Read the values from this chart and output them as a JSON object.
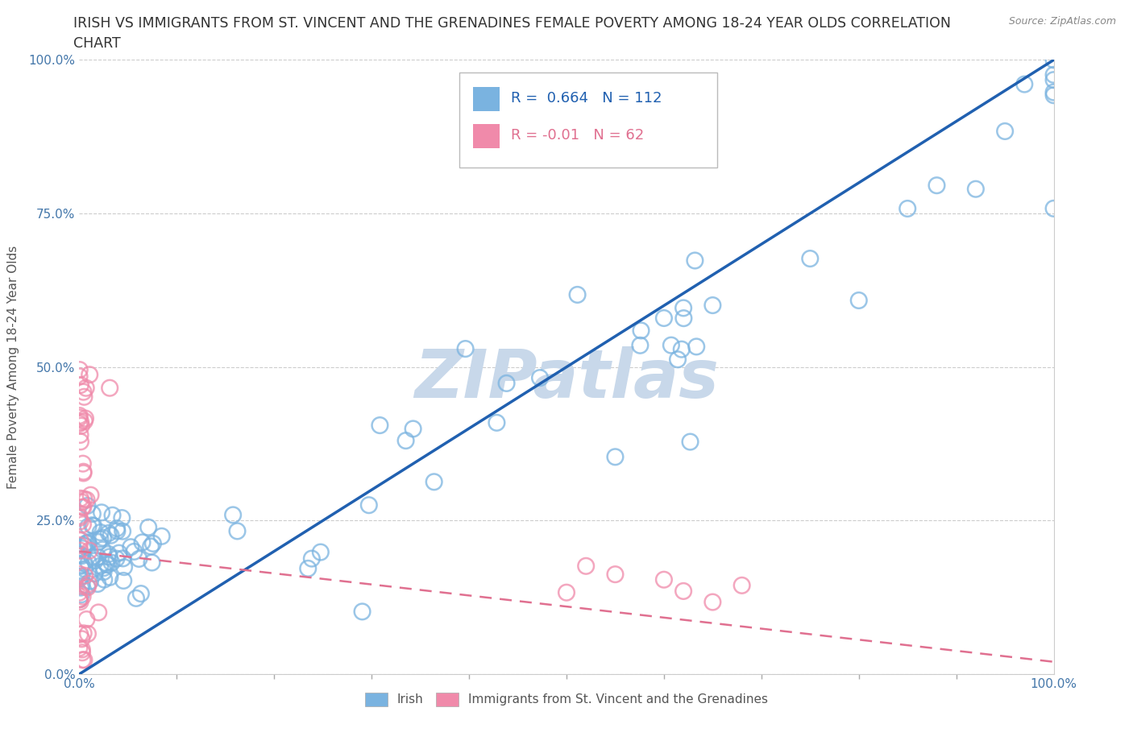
{
  "title_line1": "IRISH VS IMMIGRANTS FROM ST. VINCENT AND THE GRENADINES FEMALE POVERTY AMONG 18-24 YEAR OLDS CORRELATION",
  "title_line2": "CHART",
  "source_text": "Source: ZipAtlas.com",
  "ylabel": "Female Poverty Among 18-24 Year Olds",
  "irish_R": 0.664,
  "irish_N": 112,
  "svg_R": -0.01,
  "svg_N": 62,
  "irish_color": "#7ab3e0",
  "svg_color": "#f08aaa",
  "irish_line_color": "#2060b0",
  "svg_line_color": "#e07090",
  "watermark_color": "#c8d8ea",
  "background_color": "#ffffff",
  "grid_color": "#cccccc",
  "title_fontsize": 12.5,
  "axis_label_fontsize": 11,
  "tick_fontsize": 11
}
